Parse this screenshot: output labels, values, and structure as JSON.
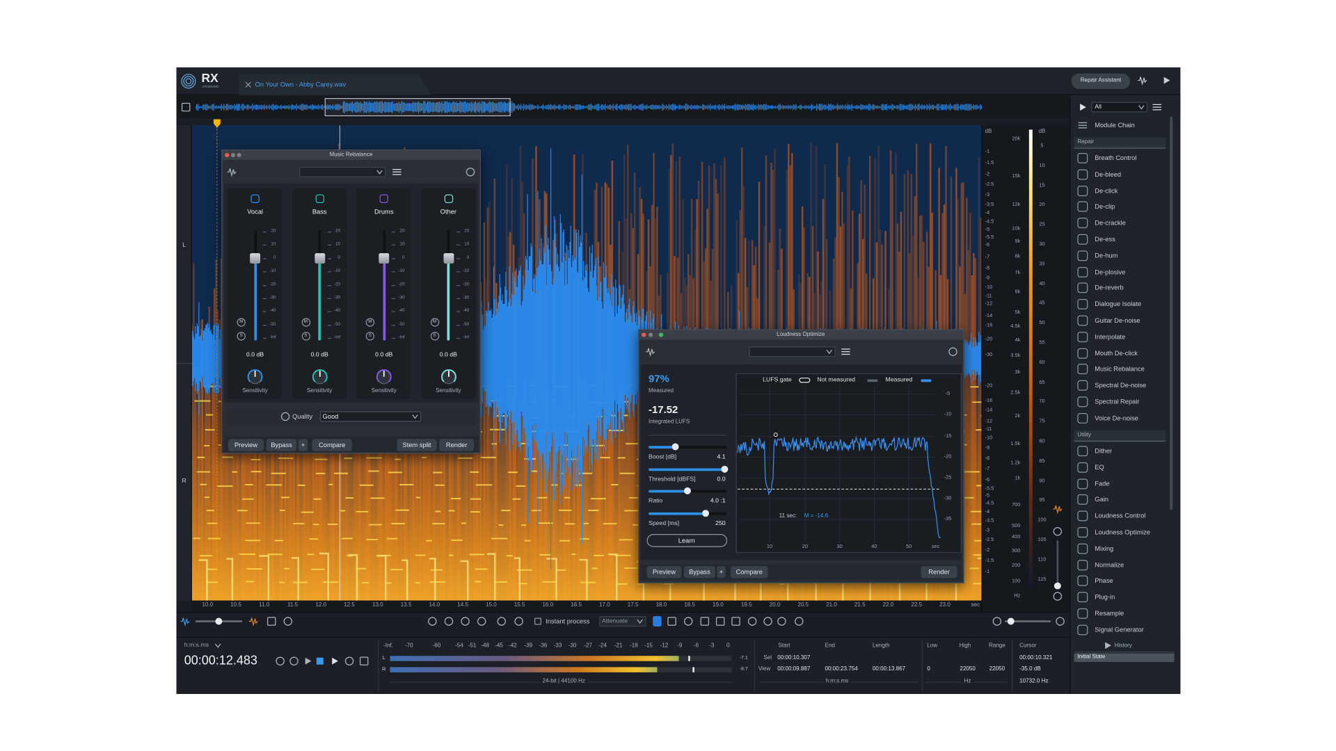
{
  "app": {
    "logo": "RX",
    "edition": "STANDARD",
    "file_tab": "On Your Own - Abby Carey.wav",
    "repair_assistant": "Repair Assistant"
  },
  "channels": [
    "L",
    "R"
  ],
  "time_ruler": {
    "labels": [
      "10.0",
      "10.5",
      "11.0",
      "11.5",
      "12.0",
      "12.5",
      "13.0",
      "13.5",
      "14.0",
      "14.5",
      "15.0",
      "15.5",
      "16.0",
      "16.5",
      "17.0",
      "17.5",
      "18.0",
      "18.5",
      "19.0",
      "19.5",
      "20.0",
      "20.5",
      "21.0",
      "21.5",
      "22.0",
      "22.5",
      "23.0"
    ],
    "unit": "sec"
  },
  "db_scale": {
    "header": "dB",
    "labels": [
      "-1",
      "-1.5",
      "-2",
      "-2.5",
      "-3",
      "-3.5",
      "-4",
      "-4.5",
      "-5",
      "-5.5",
      "-6",
      "-7",
      "-8",
      "-9",
      "-10",
      "-11",
      "-12",
      "-14",
      "-16",
      "-20",
      "-30",
      "-20",
      "-16",
      "-14",
      "-12",
      "-11",
      "-10",
      "-9",
      "-8",
      "-7",
      "-6",
      "-5.5",
      "-5",
      "-4.5",
      "-4",
      "-3.5",
      "-3",
      "-2.5",
      "-2",
      "-1.5",
      "-1"
    ]
  },
  "freq_scale": {
    "labels": [
      "20k",
      "15k",
      "12k",
      "10k",
      "9k",
      "8k",
      "7k",
      "6k",
      "5k",
      "4.5k",
      "4k",
      "3.5k",
      "3k",
      "2.5k",
      "2k",
      "1.5k",
      "1.2k",
      "1k",
      "700",
      "500",
      "400",
      "300",
      "200",
      "100"
    ],
    "unit": "Hz"
  },
  "color_scale": {
    "header": "dB",
    "labels": [
      "5",
      "10",
      "15",
      "20",
      "25",
      "30",
      "35",
      "40",
      "45",
      "50",
      "55",
      "60",
      "65",
      "70",
      "75",
      "80",
      "85",
      "90",
      "95",
      "100",
      "105",
      "110",
      "115"
    ]
  },
  "right_panel": {
    "filter": "All",
    "module_chain": "Module Chain",
    "repair_header": "Repair",
    "repair_modules": [
      "Breath Control",
      "De-bleed",
      "De-click",
      "De-clip",
      "De-crackle",
      "De-ess",
      "De-hum",
      "De-plosive",
      "De-reverb",
      "Dialogue Isolate",
      "Guitar De-noise",
      "Interpolate",
      "Mouth De-click",
      "Music Rebalance",
      "Spectral De-noise",
      "Spectral Repair",
      "Voice De-noise"
    ],
    "utility_header": "Utility",
    "utility_modules": [
      "Dither",
      "EQ",
      "Fade",
      "Gain",
      "Loudness Control",
      "Loudness Optimize",
      "Mixing",
      "Normalize",
      "Phase",
      "Plug-in",
      "Resample",
      "Signal Generator"
    ]
  },
  "music_rebalance": {
    "title": "Music Rebalance",
    "stems": [
      {
        "name": "Vocal",
        "gain": "0.0 dB",
        "knob": "Sensitivity"
      },
      {
        "name": "Bass",
        "gain": "0.0 dB",
        "knob": "Sensitivity"
      },
      {
        "name": "Drums",
        "gain": "0.0 dB",
        "knob": "Sensitivity"
      },
      {
        "name": "Other",
        "gain": "0.0 dB",
        "knob": "Sensitivity"
      }
    ],
    "fader_ticks": [
      "20",
      "10",
      "0",
      "-10",
      "-20",
      "-30",
      "-40",
      "-50",
      "-Inf"
    ],
    "mute": "M",
    "solo": "S",
    "quality_label": "Quality",
    "quality": "Good",
    "buttons": [
      "Preview",
      "Bypass",
      "+",
      "Compare",
      "Stem split",
      "Render"
    ]
  },
  "loudness_optimize": {
    "title": "Loudness Optimize",
    "percent": "97%",
    "percent_label": "Measured",
    "integrated": "-17.52",
    "integrated_label": "Integrated LUFS",
    "controls": [
      {
        "label": "Boost [dB]",
        "value": "4.1"
      },
      {
        "label": "Threshold [dBFS]",
        "value": "0.0"
      },
      {
        "label": "Ratio",
        "value": "4.0 :1"
      },
      {
        "label": "Speed [ms]",
        "value": "250"
      }
    ],
    "learn": "Learn",
    "legend": [
      "LUFS gate",
      "Not measured",
      "Measured"
    ],
    "graph_y_labels": [
      "-5",
      "-10",
      "-15",
      "-20",
      "-25",
      "-30",
      "-35"
    ],
    "graph_x_labels": [
      "10",
      "20",
      "30",
      "40",
      "50",
      "sec"
    ],
    "readout_time": "11 sec:",
    "readout_value": "M = -14.6",
    "buttons": [
      "Preview",
      "Bypass",
      "+",
      "Compare",
      "Render"
    ]
  },
  "toolbar": {
    "instant_process": "Instant process",
    "mode": "Attenuate"
  },
  "transport": {
    "time_format": "h:m:s.ms",
    "time": "00:00:12.483"
  },
  "meter": {
    "scale": [
      "-Inf.",
      "-70",
      "-60",
      "-54",
      "-51",
      "-48",
      "-45",
      "-42",
      "-39",
      "-36",
      "-33",
      "-30",
      "-27",
      "-24",
      "-21",
      "-18",
      "-15",
      "-12",
      "-9",
      "-6",
      "-3",
      "0"
    ],
    "channels": [
      "L",
      "R"
    ],
    "peaks": [
      "-7.1",
      "-8.7"
    ],
    "format": "24-bit | 44100 Hz"
  },
  "selection": {
    "headers": [
      "Start",
      "End",
      "Length"
    ],
    "rows": [
      {
        "label": "Sel",
        "start": "00:00:10.307"
      },
      {
        "label": "View",
        "start": "00:00:09.887",
        "end": "00:00:23.754",
        "length": "00:00:13.867"
      }
    ],
    "unit": "h:m:s.ms"
  },
  "frequency": {
    "headers": [
      "Low",
      "High",
      "Range"
    ],
    "values": [
      "0",
      "22050",
      "22050"
    ],
    "unit": "Hz"
  },
  "cursor": {
    "header": "Cursor",
    "time": "00:00:10.321",
    "level": "-35.0 dB",
    "frequency": "10732.0 Hz"
  },
  "history": {
    "title": "History",
    "items": [
      "Initial State"
    ]
  }
}
